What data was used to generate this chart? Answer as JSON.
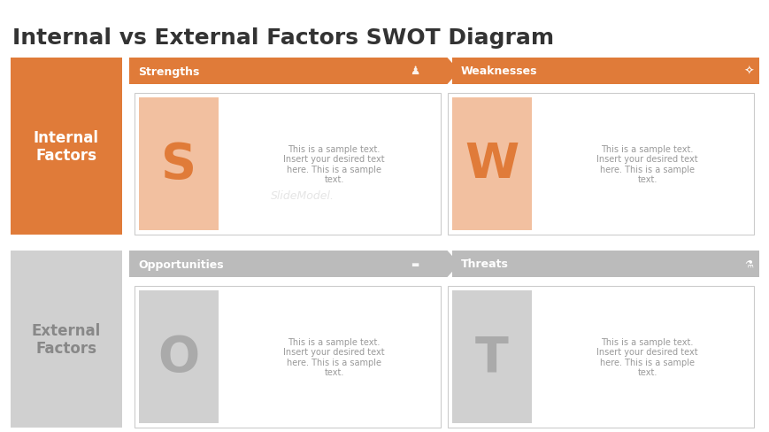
{
  "title": "Internal vs External Factors SWOT Diagram",
  "title_fontsize": 18,
  "title_color": "#333333",
  "bg_color": "#ffffff",
  "orange_color": "#E07B39",
  "orange_light": "#F2C0A0",
  "gray_header": "#BBBBBB",
  "gray_left": "#D0D0D0",
  "gray_letter_bg": "#D0D0D0",
  "gray_letter": "#AAAAAA",
  "white": "#ffffff",
  "text_gray": "#999999",
  "internal_label": "Internal\nFactors",
  "external_label": "External\nFactors",
  "strengths_label": "Strengths",
  "weaknesses_label": "Weaknesses",
  "opportunities_label": "Opportunities",
  "threats_label": "Threats",
  "s_letter": "S",
  "w_letter": "W",
  "o_letter": "O",
  "t_letter": "T",
  "sample_text": "This is a sample text.\nInsert your desired text\nhere. This is a sample\ntext.",
  "watermark": "SlideModel.",
  "header_fontsize": 9,
  "letter_fontsize": 40,
  "cell_text_fontsize": 7,
  "factor_fontsize": 12
}
